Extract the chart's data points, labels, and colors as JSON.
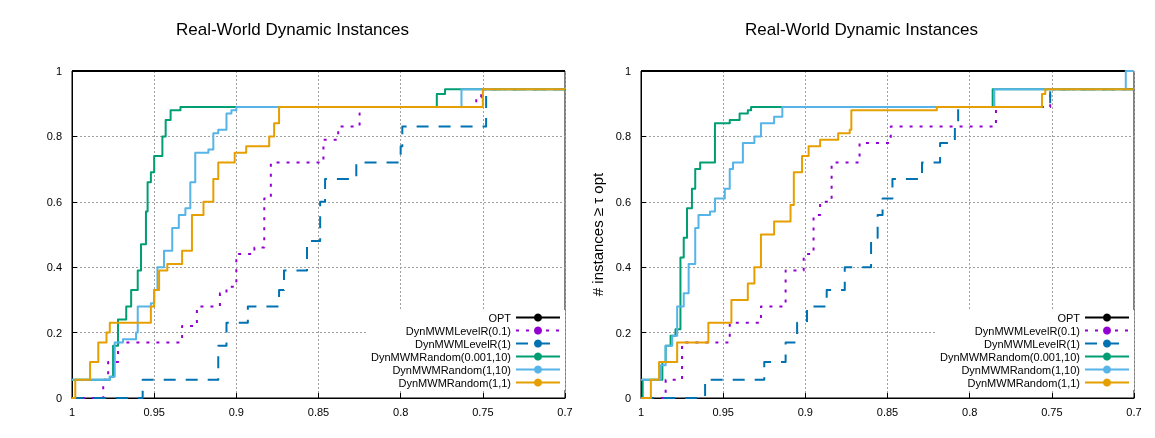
{
  "chart_data": [
    {
      "type": "step",
      "title": "Real-World Dynamic Instances",
      "xlim": [
        1,
        0.7
      ],
      "xticks": [
        1,
        0.95,
        0.9,
        0.85,
        0.8,
        0.75,
        0.7
      ],
      "ylim": [
        0,
        1
      ],
      "yticks": [
        0,
        0.2,
        0.4,
        0.6,
        0.8,
        1
      ],
      "grid": true,
      "legend": "bottom right",
      "marker": "none",
      "series": [
        {
          "name": "OPT",
          "color": "#000000",
          "line_style": "solid",
          "x": [
            1,
            0.7
          ],
          "values": [
            1,
            1
          ]
        },
        {
          "name": "DynMWMLevelR(0.1)",
          "color": "#9400d3",
          "line_style": "dotted",
          "x": [
            1,
            0.981,
            0.978,
            0.972,
            0.933,
            0.924,
            0.91,
            0.906,
            0.9,
            0.889,
            0.883,
            0.879,
            0.847,
            0.838,
            0.825,
            0.824,
            0.754,
            0.751,
            0.7
          ],
          "values": [
            0,
            0.056,
            0.11,
            0.17,
            0.22,
            0.28,
            0.32,
            0.34,
            0.44,
            0.46,
            0.61,
            0.72,
            0.79,
            0.83,
            0.87,
            0.89,
            0.92,
            0.944,
            0.944
          ]
        },
        {
          "name": "DynMWMLevelR(1)",
          "color": "#0072b2",
          "line_style": "dashed",
          "x": [
            1,
            0.957,
            0.911,
            0.906,
            0.893,
            0.874,
            0.871,
            0.857,
            0.849,
            0.846,
            0.827,
            0.8,
            0.799,
            0.748,
            0.7
          ],
          "values": [
            0,
            0.056,
            0.16,
            0.23,
            0.28,
            0.33,
            0.39,
            0.48,
            0.6,
            0.67,
            0.72,
            0.77,
            0.83,
            0.944,
            0.944
          ]
        },
        {
          "name": "DynMWMRandom(0.001,10)",
          "color": "#009e73",
          "line_style": "solid",
          "x": [
            1,
            0.977,
            0.975,
            0.972,
            0.967,
            0.964,
            0.96,
            0.958,
            0.955,
            0.954,
            0.952,
            0.95,
            0.945,
            0.943,
            0.94,
            0.934,
            0.778,
            0.773,
            0.7
          ],
          "values": [
            0.056,
            0.065,
            0.16,
            0.24,
            0.28,
            0.33,
            0.39,
            0.47,
            0.57,
            0.66,
            0.69,
            0.74,
            0.8,
            0.85,
            0.88,
            0.89,
            0.93,
            0.944,
            0.944
          ]
        },
        {
          "name": "DynMWMRandom(1,10)",
          "color": "#56b4e9",
          "line_style": "solid",
          "x": [
            1,
            0.977,
            0.974,
            0.969,
            0.961,
            0.96,
            0.952,
            0.95,
            0.948,
            0.944,
            0.939,
            0.935,
            0.931,
            0.928,
            0.925,
            0.917,
            0.914,
            0.911,
            0.906,
            0.903,
            0.9,
            0.763,
            0.7
          ],
          "values": [
            0.056,
            0.065,
            0.17,
            0.18,
            0.2,
            0.28,
            0.29,
            0.33,
            0.4,
            0.45,
            0.52,
            0.56,
            0.58,
            0.66,
            0.75,
            0.76,
            0.81,
            0.82,
            0.87,
            0.88,
            0.89,
            0.944,
            0.944
          ]
        },
        {
          "name": "DynMWMRandom(1,1)",
          "color": "#e69f00",
          "line_style": "solid",
          "x": [
            1,
            0.998,
            0.989,
            0.984,
            0.979,
            0.977,
            0.952,
            0.95,
            0.947,
            0.942,
            0.933,
            0.927,
            0.92,
            0.914,
            0.911,
            0.901,
            0.894,
            0.88,
            0.877,
            0.874,
            0.75,
            0.7
          ],
          "values": [
            0,
            0.056,
            0.11,
            0.17,
            0.2,
            0.23,
            0.28,
            0.33,
            0.39,
            0.41,
            0.45,
            0.56,
            0.6,
            0.67,
            0.72,
            0.75,
            0.77,
            0.8,
            0.84,
            0.89,
            0.944,
            0.944
          ]
        }
      ]
    },
    {
      "type": "step",
      "title": "Real-World Dynamic Instances",
      "ylabel": "# instances ≥ τ opt",
      "xlim": [
        1,
        0.7
      ],
      "xticks": [
        1,
        0.95,
        0.9,
        0.85,
        0.8,
        0.75,
        0.7
      ],
      "ylim": [
        0,
        1
      ],
      "yticks": [
        0,
        0.2,
        0.4,
        0.6,
        0.8,
        1
      ],
      "grid": true,
      "legend": "bottom right",
      "marker": "none",
      "series": [
        {
          "name": "OPT",
          "color": "#000000",
          "line_style": "solid",
          "x": [
            1,
            0.7
          ],
          "values": [
            1,
            1
          ]
        },
        {
          "name": "DynMWMLevelR(0.1)",
          "color": "#9400d3",
          "line_style": "dotted",
          "x": [
            1,
            0.985,
            0.975,
            0.946,
            0.927,
            0.912,
            0.901,
            0.895,
            0.891,
            0.884,
            0.867,
            0.848,
            0.784,
            0.751,
            0.7
          ],
          "values": [
            0,
            0.056,
            0.17,
            0.23,
            0.28,
            0.39,
            0.44,
            0.56,
            0.6,
            0.72,
            0.78,
            0.83,
            0.89,
            0.944,
            0.944
          ]
        },
        {
          "name": "DynMWMLevelR(1)",
          "color": "#0072b2",
          "line_style": "dashed",
          "x": [
            1,
            0.961,
            0.925,
            0.912,
            0.905,
            0.899,
            0.887,
            0.876,
            0.86,
            0.856,
            0.853,
            0.847,
            0.829,
            0.818,
            0.809,
            0.807,
            0.751,
            0.7
          ],
          "values": [
            0,
            0.056,
            0.11,
            0.17,
            0.23,
            0.28,
            0.33,
            0.4,
            0.49,
            0.56,
            0.61,
            0.67,
            0.72,
            0.78,
            0.83,
            0.89,
            0.944,
            0.944
          ]
        },
        {
          "name": "DynMWMRandom(0.001,10)",
          "color": "#009e73",
          "line_style": "solid",
          "x": [
            1,
            0.999,
            0.987,
            0.985,
            0.982,
            0.979,
            0.976,
            0.974,
            0.972,
            0.969,
            0.967,
            0.964,
            0.955,
            0.946,
            0.94,
            0.935,
            0.933,
            0.786,
            0.7
          ],
          "values": [
            0,
            0.056,
            0.11,
            0.16,
            0.19,
            0.21,
            0.43,
            0.49,
            0.58,
            0.64,
            0.7,
            0.72,
            0.84,
            0.85,
            0.87,
            0.88,
            0.89,
            0.944,
            0.944
          ]
        },
        {
          "name": "DynMWMRandom(1,10)",
          "color": "#56b4e9",
          "line_style": "solid",
          "x": [
            1,
            0.988,
            0.985,
            0.981,
            0.978,
            0.974,
            0.971,
            0.967,
            0.965,
            0.958,
            0.955,
            0.949,
            0.946,
            0.944,
            0.938,
            0.931,
            0.927,
            0.919,
            0.914,
            0.785,
            0.705,
            0.7
          ],
          "values": [
            0.056,
            0.1,
            0.16,
            0.19,
            0.28,
            0.32,
            0.41,
            0.52,
            0.56,
            0.57,
            0.61,
            0.64,
            0.7,
            0.72,
            0.78,
            0.8,
            0.84,
            0.86,
            0.89,
            0.944,
            1,
            1
          ]
        },
        {
          "name": "DynMWMRandom(1,1)",
          "color": "#e69f00",
          "line_style": "solid",
          "x": [
            1,
            0.994,
            0.989,
            0.978,
            0.959,
            0.945,
            0.935,
            0.931,
            0.927,
            0.919,
            0.909,
            0.907,
            0.902,
            0.898,
            0.891,
            0.88,
            0.873,
            0.872,
            0.82,
            0.756,
            0.754,
            0.7
          ],
          "values": [
            0,
            0.056,
            0.11,
            0.17,
            0.23,
            0.3,
            0.35,
            0.4,
            0.5,
            0.54,
            0.59,
            0.69,
            0.74,
            0.77,
            0.79,
            0.81,
            0.82,
            0.88,
            0.89,
            0.93,
            0.944,
            0.944
          ]
        }
      ]
    }
  ]
}
